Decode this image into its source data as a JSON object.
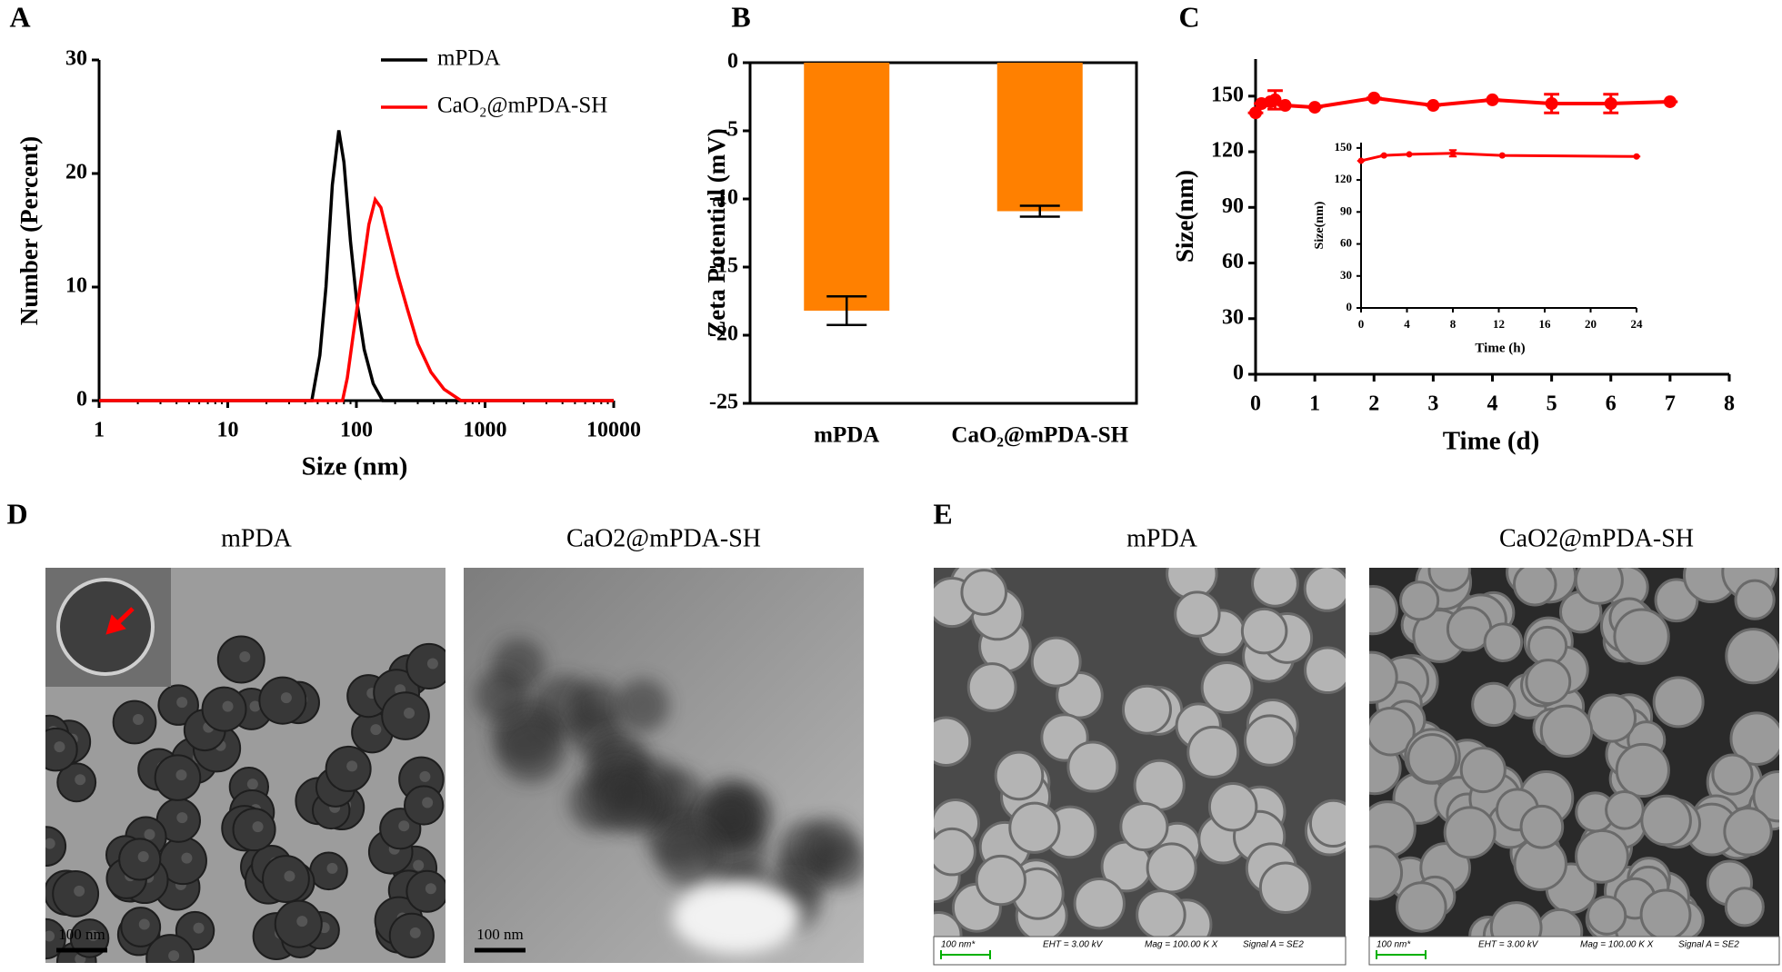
{
  "chart_data": [
    {
      "panel": "A",
      "type": "line",
      "xscale": "log",
      "xlabel": "Size (nm)",
      "ylabel": "Number (Percent)",
      "xlim": [
        1,
        10000
      ],
      "xticks": [
        1,
        10,
        100,
        1000,
        10000
      ],
      "ylim": [
        0,
        30
      ],
      "yticks": [
        0,
        10,
        20,
        30
      ],
      "series": [
        {
          "name": "mPDA",
          "color": "#000000",
          "x": [
            1,
            45,
            52,
            58,
            65,
            73,
            80,
            90,
            100,
            115,
            135,
            160,
            10000
          ],
          "values": [
            0,
            0,
            4,
            10,
            19,
            23.8,
            21,
            14,
            9,
            4.5,
            1.5,
            0,
            0
          ]
        },
        {
          "name": "CaO₂@mPDA-SH",
          "color": "#ff0000",
          "x": [
            1,
            78,
            85,
            95,
            110,
            125,
            140,
            155,
            180,
            210,
            250,
            300,
            380,
            480,
            650,
            10000
          ],
          "values": [
            0,
            0,
            2,
            6,
            11,
            15.5,
            17.7,
            17,
            14,
            11,
            8,
            5,
            2.5,
            1,
            0,
            0
          ]
        }
      ]
    },
    {
      "panel": "B",
      "type": "bar",
      "ylabel": "Zeta Potential (mV)",
      "categories": [
        "mPDA",
        "CaO₂@mPDA-SH"
      ],
      "values": [
        -18.2,
        -10.9
      ],
      "errors": [
        1.05,
        0.4
      ],
      "color": "#ff8000",
      "ylim": [
        -25,
        0
      ],
      "yticks": [
        0,
        -5,
        -10,
        -15,
        -20,
        -25
      ]
    },
    {
      "panel": "C",
      "type": "line",
      "xlabel": "Time (d)",
      "ylabel": "Size(nm)",
      "xlim": [
        0,
        8
      ],
      "xticks": [
        0,
        1,
        2,
        3,
        4,
        5,
        6,
        7,
        8
      ],
      "ylim": [
        0,
        170
      ],
      "yticks": [
        0,
        30,
        60,
        90,
        120,
        150
      ],
      "series": [
        {
          "color": "#ff0000",
          "x": [
            0,
            0.1,
            0.25,
            0.33,
            0.5,
            1,
            2,
            3,
            4,
            5,
            6,
            7
          ],
          "values": [
            141,
            146,
            147,
            148,
            145,
            144,
            149,
            145,
            148,
            146,
            146,
            147
          ],
          "errors": [
            0,
            0,
            0,
            5,
            0,
            0,
            0,
            0,
            0,
            5,
            5,
            0
          ]
        }
      ]
    },
    {
      "type": "line",
      "inset": true,
      "xlabel": "Time (h)",
      "ylabel": "Size(nm)",
      "xlim": [
        0,
        24
      ],
      "xticks": [
        0,
        4,
        8,
        12,
        16,
        20,
        24
      ],
      "ylim": [
        0,
        155
      ],
      "yticks": [
        0,
        30,
        60,
        90,
        120,
        150
      ],
      "series": [
        {
          "color": "#ff0000",
          "x": [
            0,
            2,
            4.2,
            8,
            12.3,
            24
          ],
          "values": [
            138,
            143,
            144,
            145,
            143,
            142
          ],
          "errors": [
            0,
            0,
            0,
            3,
            0,
            0
          ]
        }
      ]
    }
  ],
  "micrographs": [
    {
      "panel": "D",
      "images": [
        {
          "title": "mPDA",
          "scale_bar": "100 nm"
        },
        {
          "title": "CaO2@mPDA-SH",
          "scale_bar": "100 nm"
        }
      ]
    },
    {
      "panel": "E",
      "images": [
        {
          "title": "mPDA",
          "footer": [
            "100 nm*",
            "EHT = 3.00 kV",
            "Mag = 100.00 K X",
            "Signal A = SE2"
          ]
        },
        {
          "title": "CaO2@mPDA-SH",
          "footer": [
            "100 nm*",
            "EHT = 3.00 kV",
            "Mag = 100.00 K X",
            "Signal A = SE2"
          ]
        }
      ]
    }
  ]
}
